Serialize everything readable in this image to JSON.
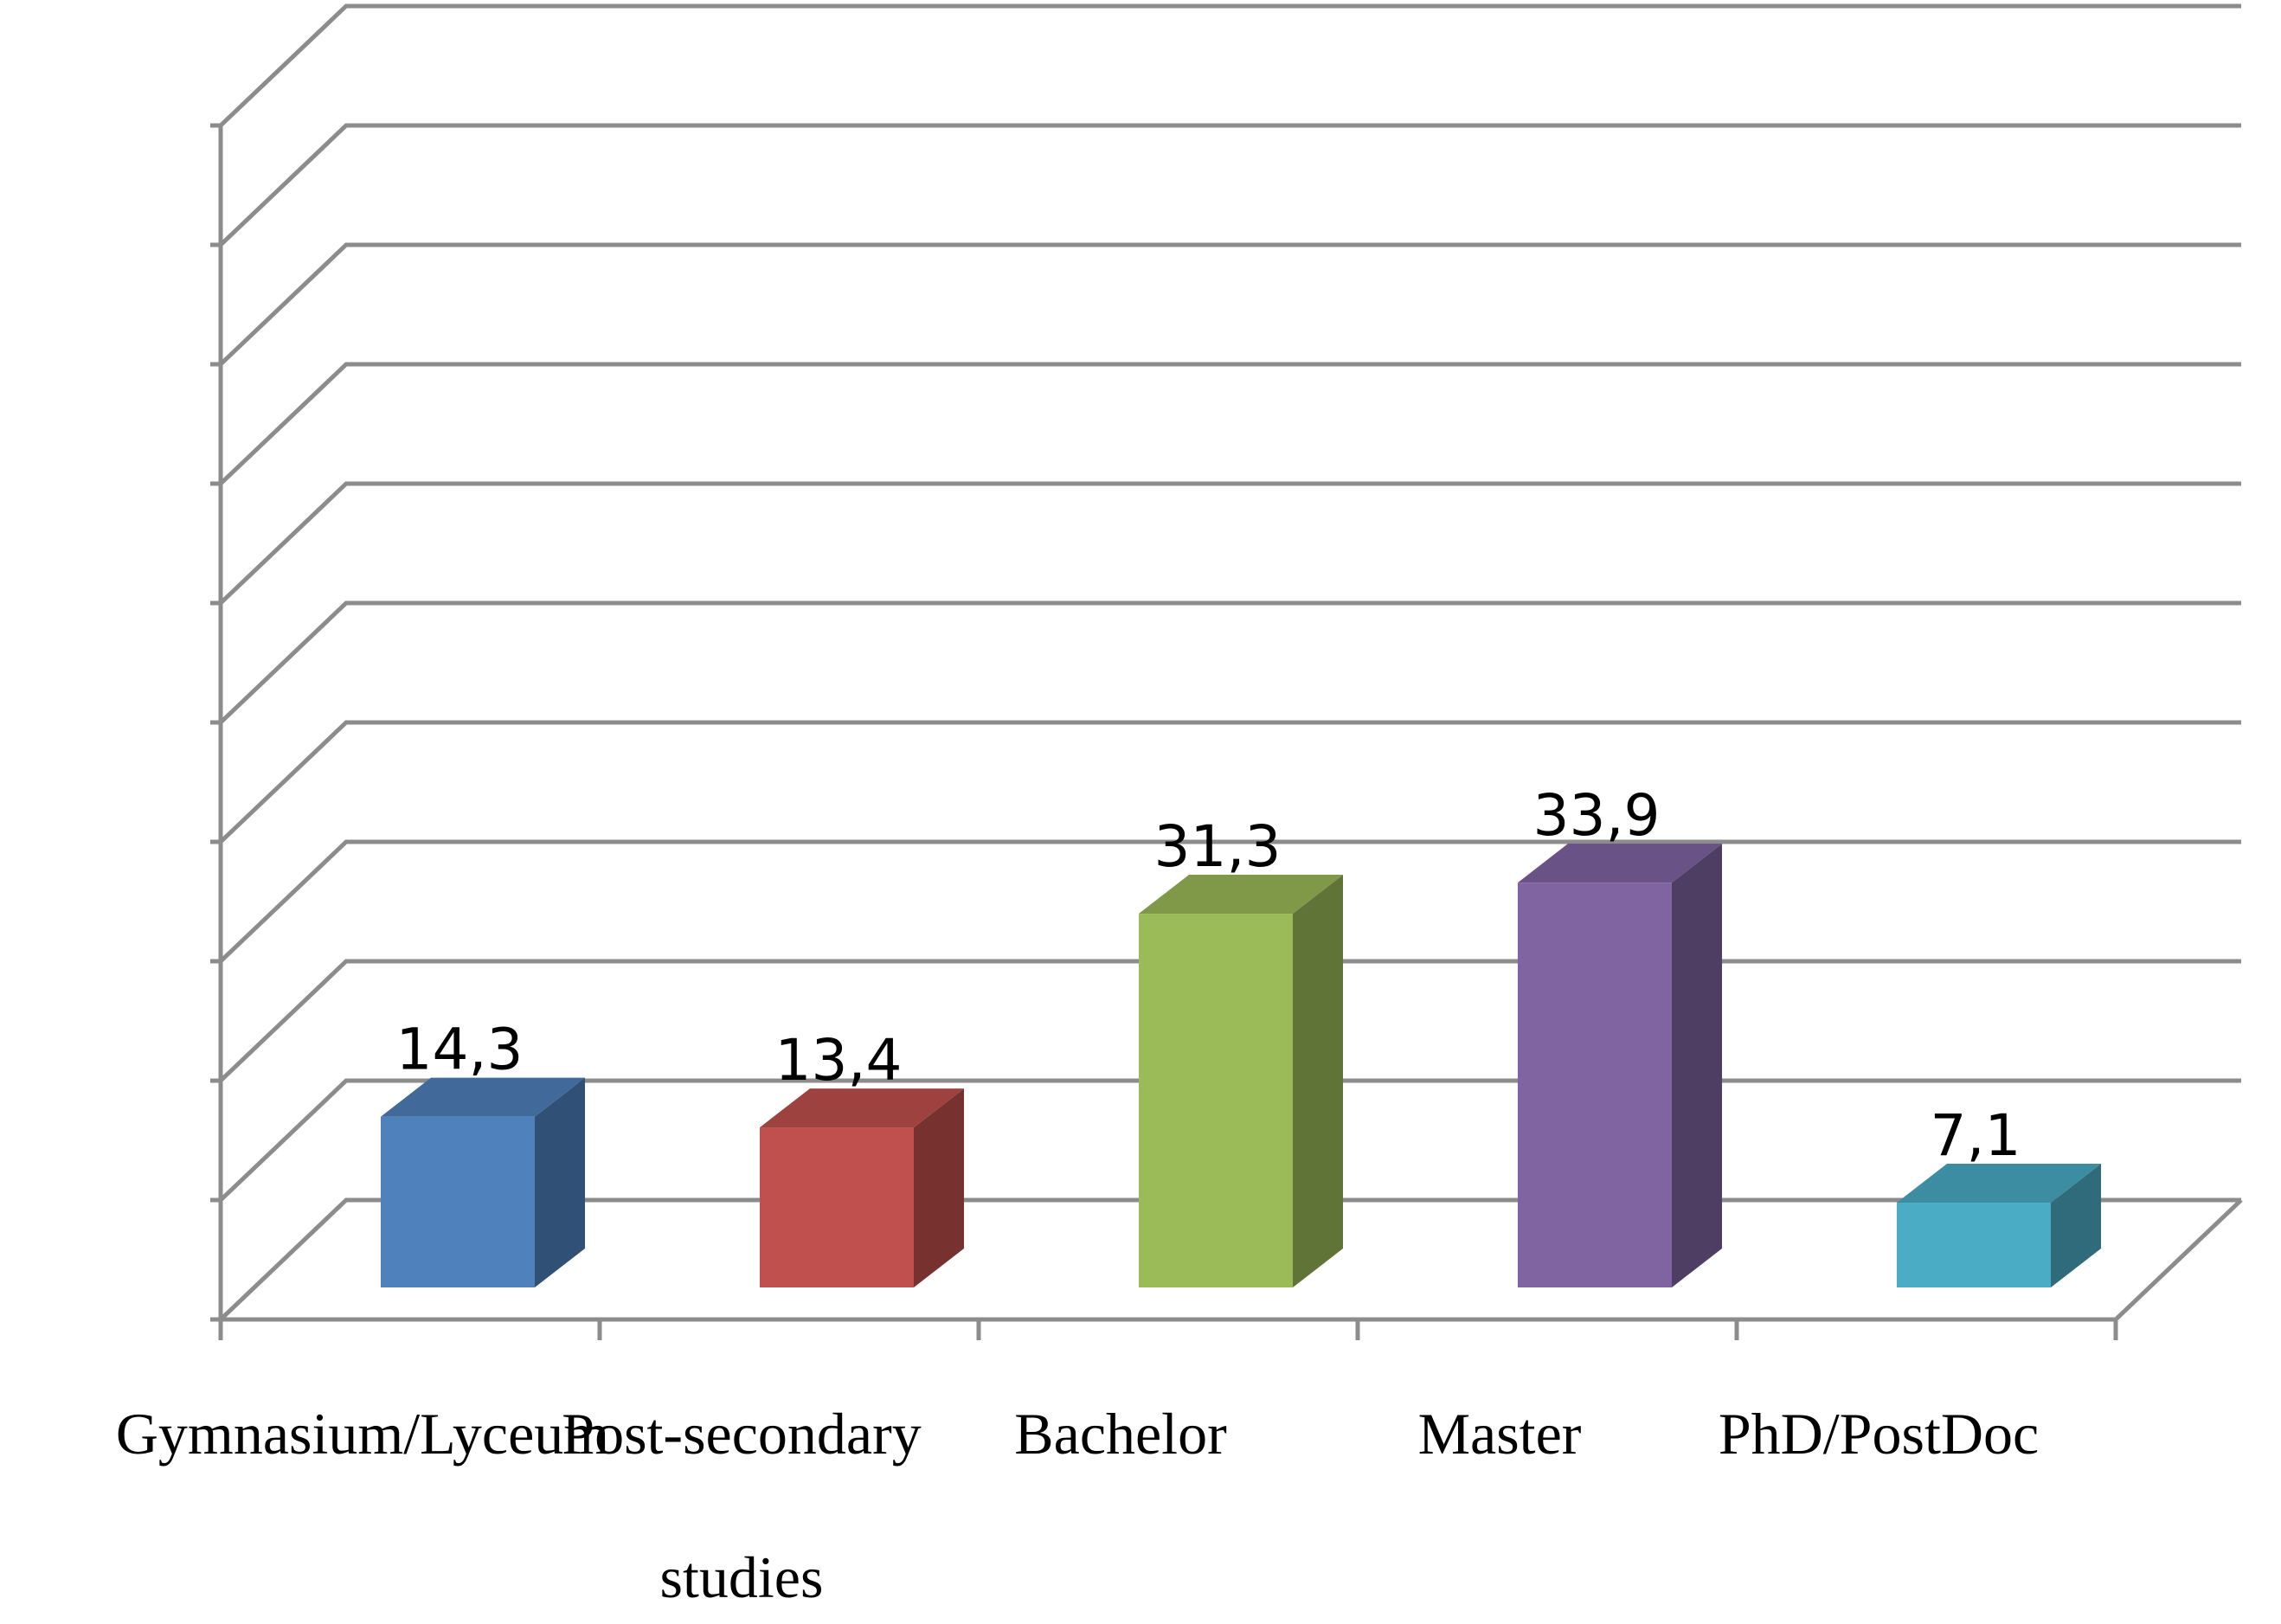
{
  "chart_data": {
    "type": "bar",
    "categories": [
      "Gymnasium/Lyceum",
      "Post-secondary studies",
      "Bachelor",
      "Master",
      "PhD/PostDoc"
    ],
    "category_label_lines": [
      [
        "Gymnasium/Lyceum"
      ],
      [
        "Post-secondary",
        "studies"
      ],
      [
        "Bachelor"
      ],
      [
        "Master"
      ],
      [
        "PhD/PostDoc"
      ]
    ],
    "values": [
      14.3,
      13.4,
      31.3,
      33.9,
      7.1
    ],
    "value_labels": [
      "14,3",
      "13,4",
      "31,3",
      "33,9",
      "7,1"
    ],
    "colors": [
      "#4F81BD",
      "#C0504D",
      "#9BBB59",
      "#8064A2",
      "#4BACC6"
    ],
    "title": "",
    "xlabel": "",
    "ylabel": "",
    "ylim": [
      0,
      100
    ],
    "grid_lines": 11,
    "grid": true,
    "three_d": true,
    "legend": "none"
  }
}
